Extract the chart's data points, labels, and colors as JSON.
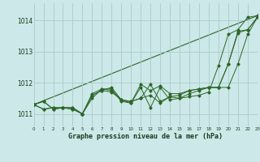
{
  "title": "Graphe pression niveau de la mer (hPa)",
  "bg_color": "#cce8e8",
  "grid_color": "#aacccc",
  "line_color": "#2d6628",
  "xlim": [
    0,
    23
  ],
  "ylim": [
    1010.6,
    1014.55
  ],
  "yticks": [
    1011,
    1012,
    1013,
    1014
  ],
  "xticks": [
    0,
    1,
    2,
    3,
    4,
    5,
    6,
    7,
    8,
    9,
    10,
    11,
    12,
    13,
    14,
    15,
    16,
    17,
    18,
    19,
    20,
    21,
    22,
    23
  ],
  "series": [
    [
      1011.3,
      1011.4,
      1011.15,
      1011.2,
      1011.15,
      1011.0,
      1011.6,
      1011.75,
      1011.7,
      1011.45,
      1011.4,
      1011.5,
      1011.6,
      1011.35,
      1011.55,
      1011.5,
      1011.55,
      1011.6,
      1011.7,
      1012.55,
      1013.55,
      1013.7,
      1014.1,
      1014.15
    ],
    [
      1011.3,
      1011.15,
      1011.2,
      1011.2,
      1011.2,
      1011.0,
      1011.5,
      1011.8,
      1011.8,
      1011.4,
      1011.35,
      1011.95,
      1011.75,
      1011.9,
      1011.65,
      1011.65,
      1011.75,
      1011.8,
      1011.85,
      1011.85,
      1011.85,
      1012.6,
      1013.55,
      1014.1
    ],
    [
      1011.3,
      1011.4,
      1011.15,
      1011.2,
      1011.15,
      1011.0,
      1011.6,
      1011.75,
      1011.85,
      1011.45,
      1011.35,
      1011.85,
      1011.2,
      1011.85,
      1011.45,
      1011.5,
      1011.65,
      1011.75,
      1011.85,
      1011.85,
      1012.6,
      1013.65,
      1013.7,
      1014.1
    ],
    [
      1011.3,
      1011.15,
      1011.2,
      1011.2,
      1011.2,
      1011.0,
      1011.65,
      1011.8,
      1011.75,
      1011.45,
      1011.4,
      1011.5,
      1011.95,
      1011.4,
      1011.55,
      1011.6,
      1011.75,
      1011.8,
      1011.85,
      1011.85,
      1012.6,
      1013.6,
      1013.7,
      1014.1
    ]
  ],
  "trend_line_x": [
    0,
    23
  ],
  "trend_line_y": [
    1011.3,
    1014.15
  ]
}
